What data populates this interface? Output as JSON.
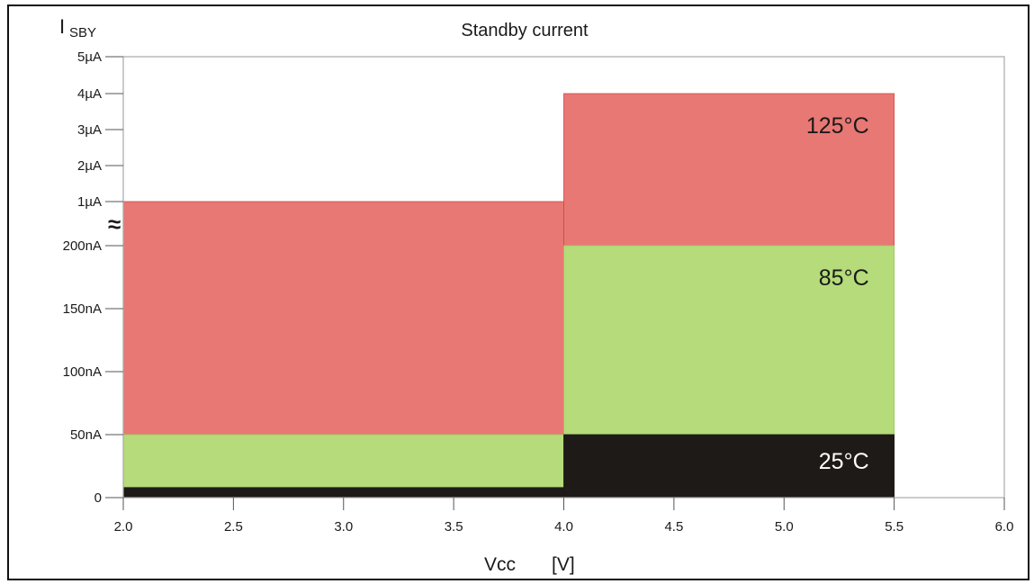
{
  "chart_data": {
    "type": "area",
    "title": "Standby current",
    "ylabel": {
      "main": "I",
      "sub": "SBY"
    },
    "xlabel": {
      "name": "Vcc",
      "unit": "[V]"
    },
    "xlim": [
      2.0,
      6.0
    ],
    "x_ticks": [
      "2.0",
      "2.5",
      "3.0",
      "3.5",
      "4.0",
      "4.5",
      "5.0",
      "5.5",
      "6.0"
    ],
    "y_ticks": [
      "0",
      "50nA",
      "100nA",
      "150nA",
      "200nA",
      "1µA",
      "2µA",
      "3µA",
      "4µA",
      "5µA"
    ],
    "y_break_symbol": "≈",
    "grid": false,
    "series": [
      {
        "name": "125°C",
        "color": "#e87874",
        "segments": [
          {
            "x0": 2.0,
            "x1": 4.0,
            "y_nA": 1000
          },
          {
            "x0": 4.0,
            "x1": 5.5,
            "y_nA": 4000
          }
        ]
      },
      {
        "name": "85°C",
        "color": "#b5db7a",
        "segments": [
          {
            "x0": 2.0,
            "x1": 4.0,
            "y_nA": 50
          },
          {
            "x0": 4.0,
            "x1": 5.5,
            "y_nA": 200
          }
        ]
      },
      {
        "name": "25°C",
        "color": "#1e1a18",
        "segments": [
          {
            "x0": 2.0,
            "x1": 4.0,
            "y_nA": 8
          },
          {
            "x0": 4.0,
            "x1": 5.5,
            "y_nA": 50
          }
        ]
      }
    ]
  }
}
